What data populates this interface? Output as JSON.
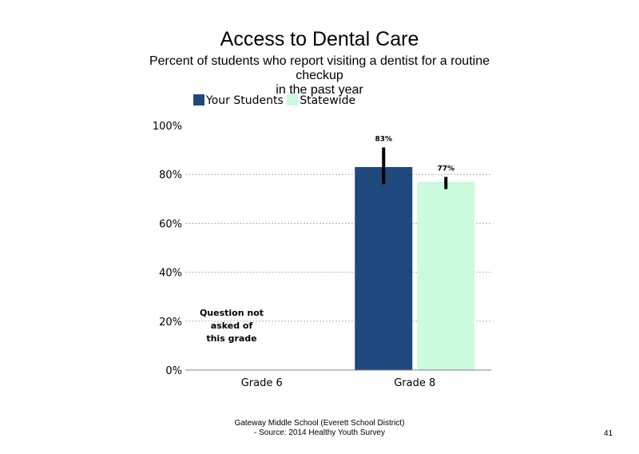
{
  "chart_data": {
    "type": "bar",
    "title": "Access to Dental Care",
    "subtitle": "Percent of students who report visiting a dentist for a routine checkup\nin the past year",
    "categories": [
      "Grade 6",
      "Grade 8"
    ],
    "series": [
      {
        "name": "Your Students",
        "values": [
          null,
          83
        ],
        "labels": [
          "",
          "83%"
        ],
        "error": [
          null,
          [
            76,
            91
          ]
        ],
        "color": "#1f497d"
      },
      {
        "name": "Statewide",
        "values": [
          null,
          77
        ],
        "labels": [
          "",
          "77%"
        ],
        "error": [
          null,
          [
            74,
            79
          ]
        ],
        "color": "#ccfadc"
      }
    ],
    "ylim": [
      0,
      100
    ],
    "yticks": [
      "0%",
      "20%",
      "40%",
      "60%",
      "80%",
      "100%"
    ],
    "grid": true,
    "legend": "top-left",
    "annotation": "Question not\nasked of\nthis grade"
  },
  "footer": {
    "source": "Gateway Middle School (Everett School District)\n- Source: 2014 Healthy Youth Survey",
    "page_number": "41"
  }
}
